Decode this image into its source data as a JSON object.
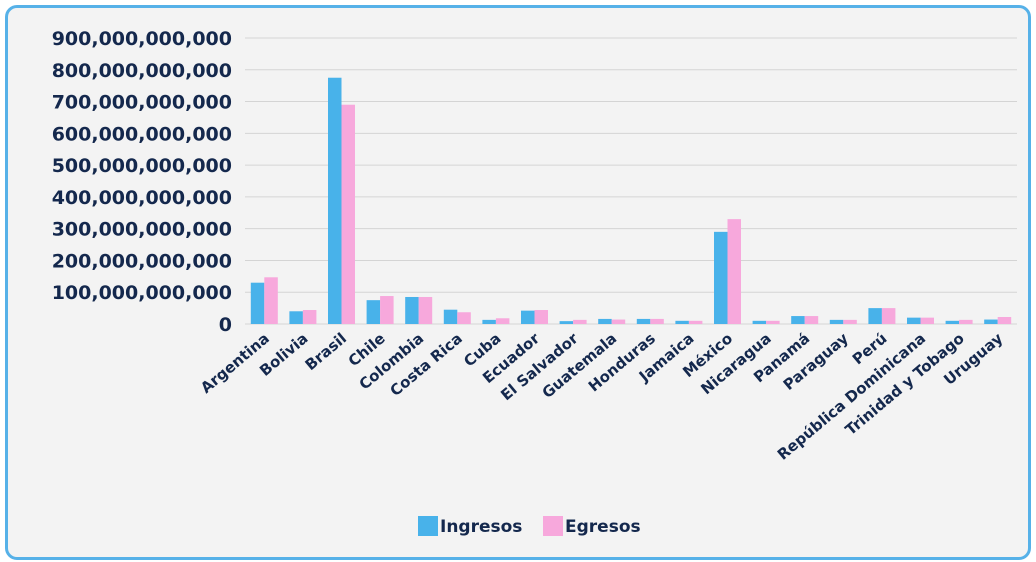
{
  "colors": {
    "ingresos": "#48b2ea",
    "egresos": "#f7a8dc",
    "frame": "#56b1e8",
    "text": "#14284d"
  },
  "chart_data": {
    "type": "bar",
    "title": "",
    "xlabel": "",
    "ylabel": "",
    "ylim": [
      0,
      900000000000
    ],
    "yticks": [
      0,
      100000000000,
      200000000000,
      300000000000,
      400000000000,
      500000000000,
      600000000000,
      700000000000,
      800000000000,
      900000000000
    ],
    "ytick_labels": [
      "0",
      "100,000,000,000",
      "200,000,000,000",
      "300,000,000,000",
      "400,000,000,000",
      "500,000,000,000",
      "600,000,000,000",
      "700,000,000,000",
      "800,000,000,000",
      "900,000,000,000"
    ],
    "grid": true,
    "legend_position": "bottom",
    "categories": [
      "Argentina",
      "Bolivia",
      "Brasil",
      "Chile",
      "Colombia",
      "Costa Rica",
      "Cuba",
      "Ecuador",
      "El Salvador",
      "Guatemala",
      "Honduras",
      "Jamaica",
      "México",
      "Nicaragua",
      "Panamá",
      "Paraguay",
      "Perú",
      "República Dominicana",
      "Trinidad y Tobago",
      "Uruguay"
    ],
    "series": [
      {
        "name": "Ingresos",
        "values": [
          130000000000,
          40000000000,
          775000000000,
          75000000000,
          85000000000,
          45000000000,
          13000000000,
          42000000000,
          9000000000,
          16000000000,
          16000000000,
          10000000000,
          290000000000,
          10000000000,
          25000000000,
          13000000000,
          50000000000,
          20000000000,
          10000000000,
          14000000000
        ]
      },
      {
        "name": "Egresos",
        "values": [
          147000000000,
          44000000000,
          690000000000,
          88000000000,
          85000000000,
          37000000000,
          18000000000,
          44000000000,
          13000000000,
          14000000000,
          16000000000,
          10000000000,
          330000000000,
          10000000000,
          25000000000,
          13000000000,
          50000000000,
          20000000000,
          13000000000,
          22000000000
        ]
      }
    ]
  }
}
